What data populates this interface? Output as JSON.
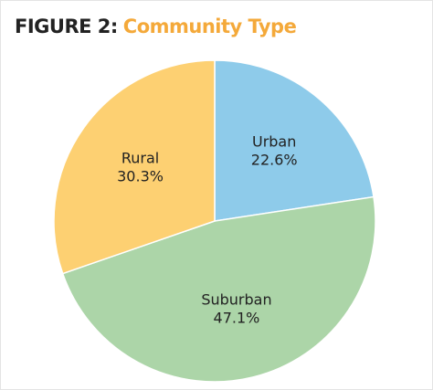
{
  "chart_data": {
    "type": "pie",
    "figure_label": "FIGURE 2:",
    "title": "Community Type",
    "categories": [
      "Urban",
      "Suburban",
      "Rural"
    ],
    "values": [
      22.6,
      47.1,
      30.3
    ],
    "value_labels": [
      "22.6%",
      "47.1%",
      "30.3%"
    ],
    "colors": [
      "#8ecbea",
      "#acd5a8",
      "#fdd072"
    ]
  }
}
